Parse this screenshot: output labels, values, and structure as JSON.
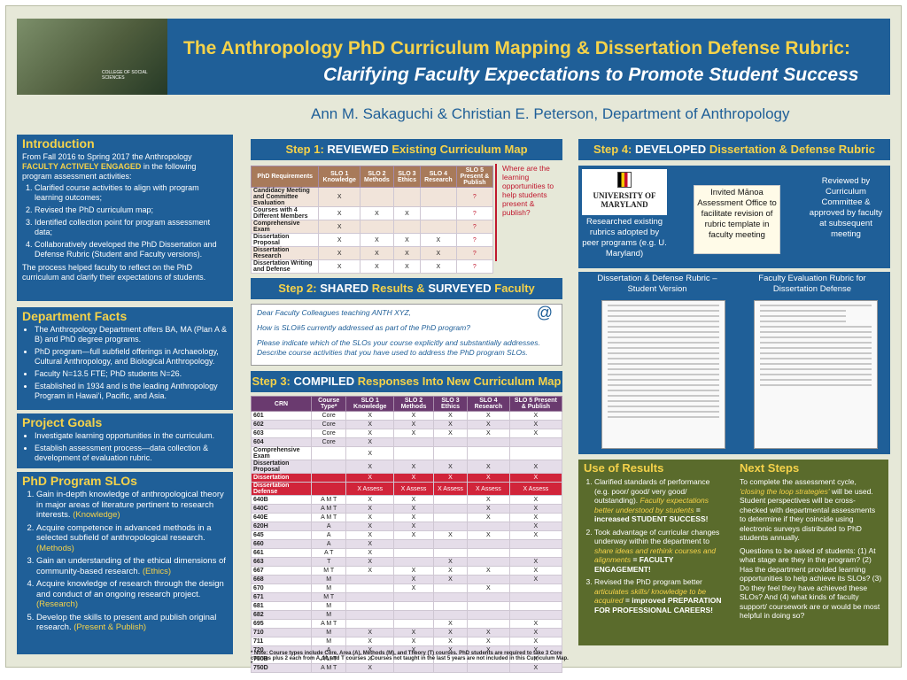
{
  "header": {
    "title": "The Anthropology PhD Curriculum Mapping & Dissertation Defense Rubric:",
    "subtitle": "Clarifying Faculty Expectations to Promote Student Success",
    "college": "COLLEGE OF SOCIAL SCIENCES",
    "authors": "Ann M. Sakaguchi & Christian E. Peterson, Department of Anthropology"
  },
  "intro": {
    "title": "Introduction",
    "lead1": "From Fall 2016 to Spring 2017 the Anthropology",
    "lead_em": "FACULTY ACTIVELY ENGAGED",
    "lead2": "in the following program assessment activities:",
    "items": [
      "Clarified course activities to align with program learning outcomes;",
      "Revised the PhD curriculum map;",
      "Identified collection point for program assessment data;",
      "Collaboratively developed the PhD Dissertation and Defense Rubric (Student and Faculty versions)."
    ],
    "closing": "The process helped faculty to reflect on the PhD curriculum and clarify their expectations of students."
  },
  "facts": {
    "title": "Department Facts",
    "items": [
      "The Anthropology Department offers BA, MA (Plan A & B) and PhD degree programs.",
      "PhD program—full subfield offerings in Archaeology, Cultural Anthropology, and Biological Anthropology.",
      "Faculty N=13.5 FTE;  PhD students N=26.",
      "Established in 1934 and is the leading Anthropology Program in Hawai‘i, Pacific, and Asia."
    ]
  },
  "goals": {
    "title": "Project Goals",
    "items": [
      "Investigate learning opportunities in the curriculum.",
      "Establish assessment process—data collection & development of evaluation rubric."
    ]
  },
  "slos": {
    "title": "PhD Program SLOs",
    "items": [
      {
        "text": "Gain in-depth knowledge of anthropological theory in major areas of literature pertinent to research interests.",
        "tag": "(Knowledge)"
      },
      {
        "text": "Acquire competence in advanced methods in a selected subfield of anthropological research.",
        "tag": "(Methods)"
      },
      {
        "text": "Gain an understanding of the ethical dimensions of community-based research.",
        "tag": "(Ethics)"
      },
      {
        "text": "Acquire knowledge of research through the design and conduct of an ongoing research project.",
        "tag": "(Research)"
      },
      {
        "text": "Develop the skills to present and publish original research.",
        "tag": "(Present & Publish)"
      }
    ]
  },
  "step1": {
    "pre": "Step 1:",
    "em": "REVIEWED",
    "post": "Existing Curriculum Map",
    "note": "Where are the learning opportunities to help students present & publish?",
    "headers": [
      "PhD Requirements",
      "SLO 1 Knowledge",
      "SLO 2 Methods",
      "SLO 3 Ethics",
      "SLO 4 Research",
      "SLO 5 Present & Publish"
    ],
    "rows": [
      [
        "Candidacy Meeting and Committee Evaluation",
        "X",
        "",
        "",
        "",
        "?"
      ],
      [
        "Courses with 4 Different Members",
        "X",
        "X",
        "X",
        "",
        "?"
      ],
      [
        "Comprehensive Exam",
        "X",
        "",
        "",
        "",
        "?"
      ],
      [
        "Dissertation Proposal",
        "X",
        "X",
        "X",
        "X",
        "?"
      ],
      [
        "Dissertation Research",
        "X",
        "X",
        "X",
        "X",
        "?"
      ],
      [
        "Dissertation Writing and Defense",
        "X",
        "X",
        "X",
        "X",
        "?"
      ]
    ]
  },
  "step2": {
    "pre": "Step 2:",
    "em": "SHARED",
    "mid": "Results &",
    "em2": "SURVEYED",
    "post": "Faculty",
    "lines": [
      "Dear Faculty Colleagues teaching ANTH XYZ,",
      "How is SLO#5 currently addressed as part of the PhD program?",
      "Please indicate which of the SLOs your course explicitly and substantially addresses. Describe course activities that you have used to address the PhD program SLOs."
    ],
    "at": "@"
  },
  "step3": {
    "pre": "Step 3:",
    "em": "COMPILED",
    "post": "Responses Into New Curriculum Map",
    "headers": [
      "CRN",
      "Course Type*",
      "SLO 1 Knowledge",
      "SLO 2 Methods",
      "SLO 3 Ethics",
      "SLO 4 Research",
      "SLO 5 Present & Publish"
    ],
    "rows": [
      [
        "601",
        "Core",
        "X",
        "X",
        "X",
        "X",
        "X"
      ],
      [
        "602",
        "Core",
        "X",
        "X",
        "X",
        "X",
        "X"
      ],
      [
        "603",
        "Core",
        "X",
        "X",
        "X",
        "X",
        "X"
      ],
      [
        "604",
        "Core",
        "X",
        "",
        "",
        "",
        ""
      ],
      [
        "Comprehensive Exam",
        "",
        "X",
        "",
        "",
        "",
        ""
      ],
      [
        "Dissertation Proposal",
        "",
        "X",
        "X",
        "X",
        "X",
        "X"
      ],
      [
        "Dissertation",
        "",
        "X",
        "X",
        "X",
        "X",
        "X"
      ],
      [
        "Dissertation Defense",
        "",
        "X Assess",
        "X Assess",
        "X Assess",
        "X Assess",
        "X Assess"
      ],
      [
        "640B",
        "A   M   T",
        "X",
        "X",
        "",
        "X",
        "X"
      ],
      [
        "640C",
        "A   M   T",
        "X",
        "X",
        "",
        "X",
        "X"
      ],
      [
        "640E",
        "A   M   T",
        "X",
        "X",
        "",
        "X",
        "X"
      ],
      [
        "620H",
        "A",
        "X",
        "X",
        "",
        "",
        "X"
      ],
      [
        "645",
        "A",
        "X",
        "X",
        "X",
        "X",
        "X"
      ],
      [
        "660",
        "A",
        "X",
        "",
        "",
        "",
        ""
      ],
      [
        "661",
        "A      T",
        "X",
        "",
        "",
        "",
        ""
      ],
      [
        "663",
        "T",
        "X",
        "",
        "X",
        "",
        "X"
      ],
      [
        "667",
        "M   T",
        "X",
        "X",
        "X",
        "X",
        "X"
      ],
      [
        "668",
        "M",
        "",
        "X",
        "X",
        "",
        "X"
      ],
      [
        "670",
        "M",
        "",
        "X",
        "",
        "X",
        ""
      ],
      [
        "671",
        "M   T",
        "",
        "",
        "",
        "",
        ""
      ],
      [
        "681",
        "M",
        "",
        "",
        "",
        "",
        ""
      ],
      [
        "682",
        "M",
        "",
        "",
        "",
        "",
        ""
      ],
      [
        "695",
        "A   M   T",
        "",
        "",
        "X",
        "",
        "X"
      ],
      [
        "710",
        "M",
        "X",
        "X",
        "X",
        "X",
        "X"
      ],
      [
        "711",
        "M",
        "X",
        "X",
        "X",
        "X",
        "X"
      ],
      [
        "720",
        "A",
        "X",
        "X",
        "X",
        "X",
        "X"
      ],
      [
        "750B",
        "A   M   T",
        "X",
        "",
        "",
        "",
        "X"
      ],
      [
        "750D",
        "A   M   T",
        "X",
        "",
        "",
        "",
        "X"
      ]
    ],
    "note": "* Note: Course types include Core, Area (A), Methods (M), and Theory (T) courses. PhD students are required to take 3 Core courses plus 2 each from A, M, and T courses . Courses not taught in the last 5 years are not included in this Curriculum Map. *"
  },
  "step4": {
    "pre": "Step 4:",
    "em": "DEVELOPED",
    "post": "Dissertation & Defense Rubric",
    "logo": "UNIVERSITY OF MARYLAND",
    "box1": "Researched existing rubrics adopted by peer programs (e.g. U. Maryland)",
    "box2": "Invited Mānoa Assessment Office to facilitate revision of rubric template in faculty meeting",
    "box3": "Reviewed by Curriculum Committee & approved by faculty at subsequent meeting",
    "rubric1": "Dissertation & Defense Rubric – Student Version",
    "rubric2": "Faculty Evaluation Rubric for Dissertation Defense"
  },
  "results": {
    "title": "Use of Results",
    "items": [
      {
        "a": "Clarified standards of performance (e.g. poor/ good/ very good/ outstanding).",
        "em": "Faculty expectations better understood by students",
        "b": "= increased STUDENT SUCCESS!"
      },
      {
        "a": "Took advantage of curricular changes underway within the department to",
        "em": "share ideas and rethink courses and alignments",
        "b": "= FACULTY ENGAGEMENT!"
      },
      {
        "a": "Revised the PhD program better",
        "em": "articulates skills/ knowledge to be acquired",
        "b": "= improved PREPARATION FOR PROFESSIONAL CAREERS!"
      }
    ]
  },
  "next": {
    "title": "Next Steps",
    "p1a": "To complete the assessment cycle,",
    "p1em": "'closing the loop strategies'",
    "p1b": "will be used. Student perspectives will be cross-checked with departmental assessments to determine if they coincide using electronic surveys distributed to PhD students annually.",
    "p2": "Questions to be asked of students: (1) At what stage are they in the program? (2) Has the department provided learning opportunities to help achieve its SLOs? (3) Do they feel they have achieved these SLOs? And (4) what kinds of faculty support/ coursework are or would be most helpful in doing so?"
  },
  "colors": {
    "blue": "#1f5f98",
    "gold": "#f5d24a",
    "olive": "#5a6b2c",
    "purple": "#6a3a6f",
    "red": "#d1243a"
  }
}
